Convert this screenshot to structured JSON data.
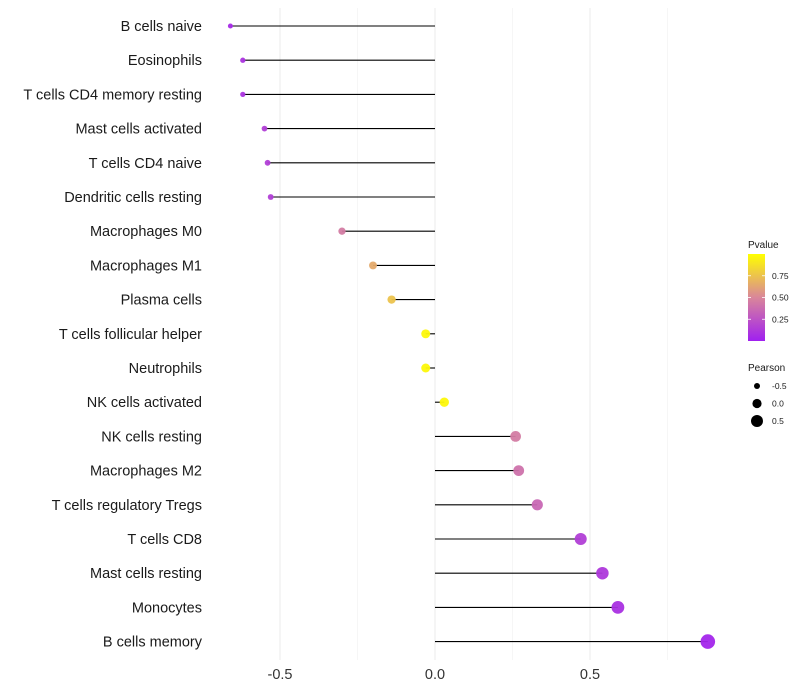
{
  "chart_data": {
    "type": "lollipop",
    "title": "",
    "xlabel": "",
    "ylabel": "",
    "xlim": [
      -1.0,
      0.9
    ],
    "x_ticks": [
      -0.5,
      0.0,
      0.5
    ],
    "x_tick_labels": [
      "-0.5",
      "0.0",
      "0.5"
    ],
    "grid": true,
    "categories": [
      "B cells naive",
      "Eosinophils",
      "T cells CD4 memory resting",
      "Mast cells activated",
      "T cells CD4 naive",
      "Dendritic cells resting",
      "Macrophages M0",
      "Macrophages M1",
      "Plasma cells",
      "T cells follicular helper",
      "Neutrophils",
      "NK cells activated",
      "NK cells resting",
      "Macrophages M2",
      "T cells regulatory  Tregs",
      "T cells CD8",
      "Mast cells resting",
      "Monocytes",
      "B cells memory"
    ],
    "pearson": [
      -0.66,
      -0.62,
      -0.62,
      -0.55,
      -0.54,
      -0.53,
      -0.3,
      -0.2,
      -0.14,
      -0.03,
      -0.03,
      0.03,
      0.26,
      0.27,
      0.33,
      0.47,
      0.54,
      0.59,
      0.88
    ],
    "pvalue": [
      0.05,
      0.1,
      0.1,
      0.15,
      0.15,
      0.15,
      0.45,
      0.65,
      0.75,
      0.97,
      0.97,
      0.97,
      0.45,
      0.4,
      0.35,
      0.15,
      0.12,
      0.08,
      0.03
    ],
    "legend": {
      "color": {
        "title": "Pvalue",
        "ticks": [
          0.25,
          0.5,
          0.75
        ],
        "tick_labels": [
          "0.25",
          "0.50",
          "0.75"
        ],
        "range": [
          0.0,
          1.0
        ],
        "low_color": "#a020f0",
        "mid_color": "#d9869a",
        "high_color": "#ffff00"
      },
      "size": {
        "title": "Pearson",
        "values": [
          -0.5,
          0.0,
          0.5
        ],
        "labels": [
          "-0.5",
          "0.0",
          "0.5"
        ]
      },
      "placement": "right"
    }
  }
}
